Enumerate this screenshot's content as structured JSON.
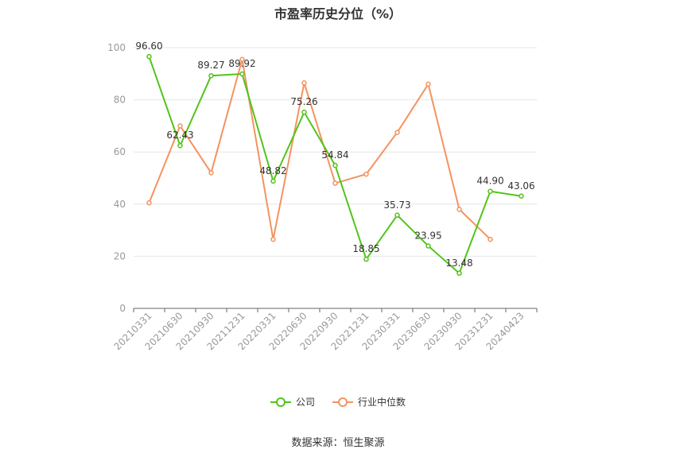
{
  "chart_data": {
    "type": "line",
    "title": "市盈率历史分位（%）",
    "categories": [
      "20210331",
      "20210630",
      "20210930",
      "20211231",
      "20220331",
      "20220630",
      "20220930",
      "20221231",
      "20230331",
      "20230630",
      "20230930",
      "20231231",
      "20240423"
    ],
    "ylim": [
      0,
      100
    ],
    "yticks": [
      0,
      20,
      40,
      60,
      80,
      100
    ],
    "grid": true,
    "legend_position": "bottom",
    "series": [
      {
        "name": "公司",
        "color": "#52c41a",
        "values": [
          96.6,
          62.43,
          89.27,
          89.92,
          48.82,
          75.26,
          54.84,
          18.85,
          35.73,
          23.95,
          13.48,
          44.9,
          43.06
        ],
        "labels": [
          "96.60",
          "62.43",
          "89.27",
          "89.92",
          "48.82",
          "75.26",
          "54.84",
          "18.85",
          "35.73",
          "23.95",
          "13.48",
          "44.90",
          "43.06"
        ]
      },
      {
        "name": "行业中位数",
        "color": "#f4935f",
        "values": [
          40.5,
          70.0,
          52.0,
          95.5,
          26.5,
          86.5,
          48.0,
          51.5,
          67.5,
          86.0,
          38.0,
          26.5,
          null
        ]
      }
    ]
  },
  "source": "数据来源：恒生聚源"
}
